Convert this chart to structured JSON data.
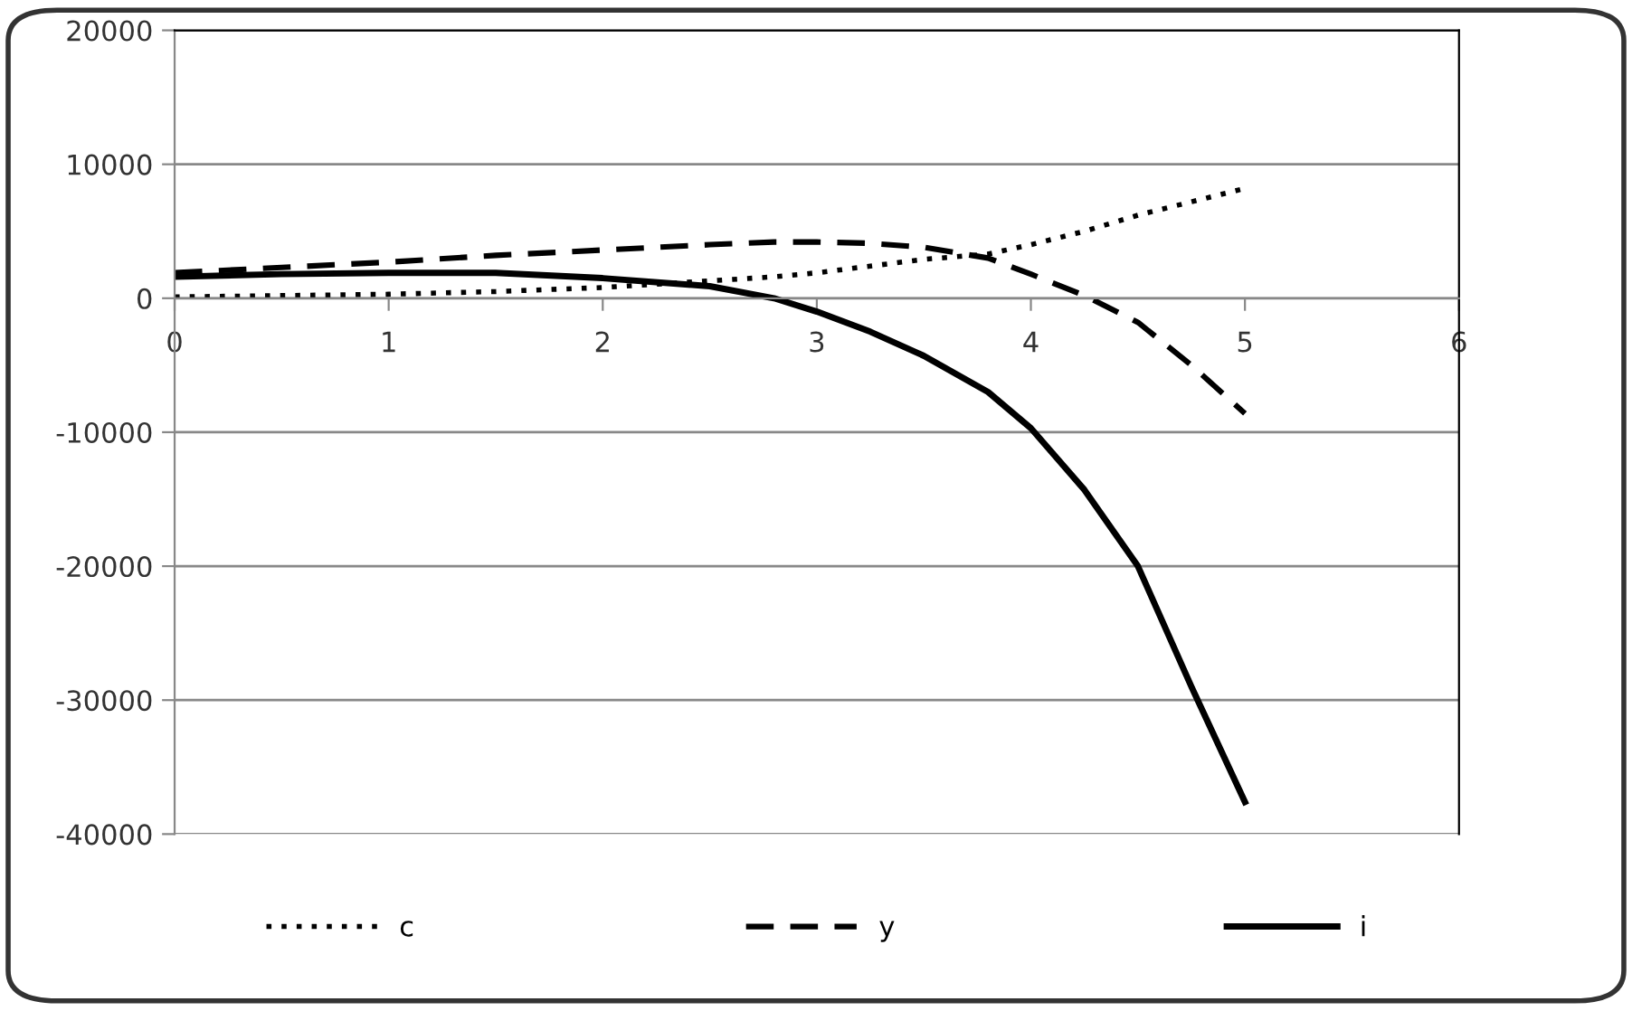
{
  "chart_data": {
    "type": "line",
    "x": [
      0,
      0.5,
      1,
      1.5,
      2,
      2.5,
      2.8,
      3,
      3.25,
      3.5,
      3.8,
      4,
      4.25,
      4.5,
      4.75,
      5
    ],
    "series": [
      {
        "name": "c",
        "color": "#000000",
        "line_style": "dotted",
        "values": [
          100,
          200,
          300,
          500,
          800,
          1300,
          1600,
          1900,
          2400,
          2900,
          3300,
          4000,
          5000,
          6200,
          7200,
          8200
        ]
      },
      {
        "name": "y",
        "color": "#000000",
        "line_style": "dashed",
        "values": [
          1900,
          2300,
          2700,
          3200,
          3600,
          4000,
          4200,
          4200,
          4100,
          3800,
          3000,
          1800,
          200,
          -1800,
          -5000,
          -8600
        ]
      },
      {
        "name": "i",
        "color": "#000000",
        "line_style": "solid",
        "values": [
          1600,
          1800,
          1900,
          1900,
          1500,
          900,
          0,
          -1000,
          -2500,
          -4300,
          -7000,
          -9700,
          -14300,
          -20000,
          -29000,
          -37600
        ]
      }
    ],
    "xlim": [
      0,
      6
    ],
    "xticks": [
      0,
      1,
      2,
      3,
      4,
      5,
      6
    ],
    "ylim": [
      -40000,
      20000
    ],
    "yticks": [
      -40000,
      -30000,
      -20000,
      -10000,
      0,
      10000,
      20000
    ],
    "grid": "y",
    "legend": "bottom"
  }
}
